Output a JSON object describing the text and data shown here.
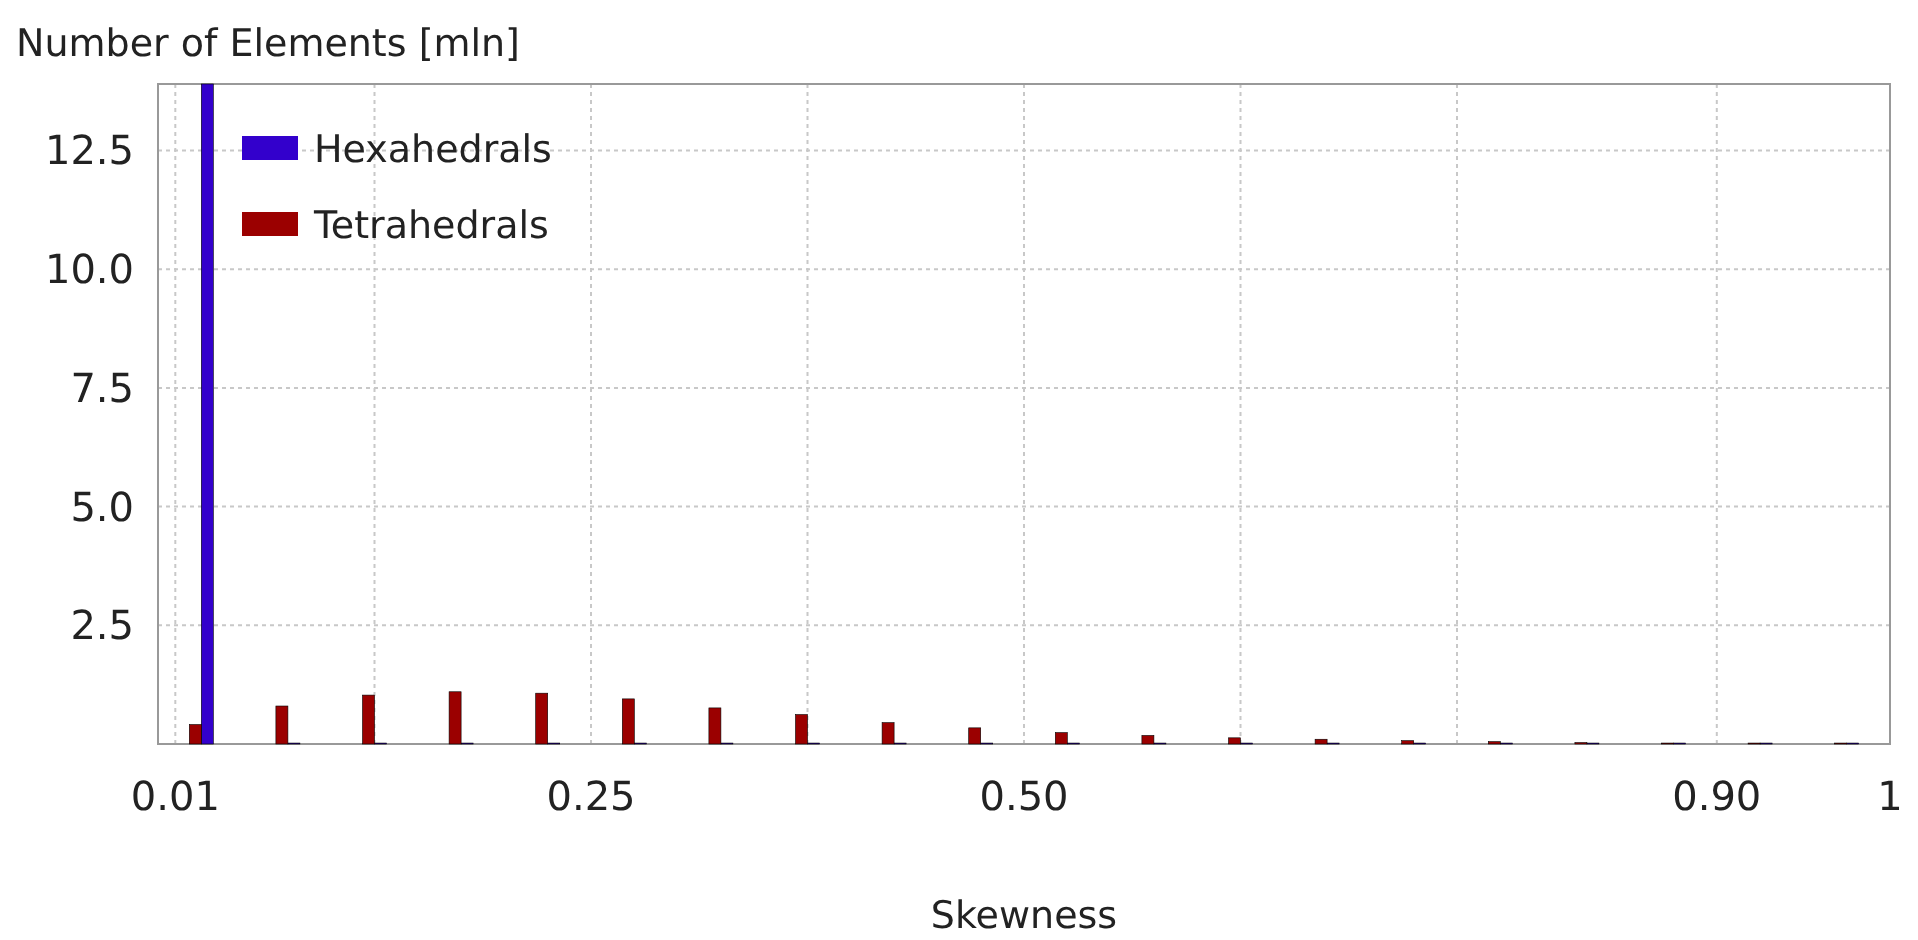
{
  "chart_data": {
    "type": "bar",
    "xlabel": "Skewness",
    "ylabel": "Number of Elements [mln]",
    "x": [
      0.025,
      0.075,
      0.125,
      0.175,
      0.225,
      0.275,
      0.325,
      0.375,
      0.425,
      0.475,
      0.525,
      0.575,
      0.625,
      0.675,
      0.725,
      0.775,
      0.825,
      0.875,
      0.925,
      0.975
    ],
    "series": [
      {
        "name": "Hexahedrals",
        "color": "#3300cc",
        "values": [
          13.9,
          0.02,
          0.02,
          0.02,
          0.02,
          0.02,
          0.02,
          0.02,
          0.02,
          0.02,
          0.02,
          0.02,
          0.02,
          0.02,
          0.02,
          0.02,
          0.02,
          0.02,
          0.02,
          0.02
        ]
      },
      {
        "name": "Tetrahedrals",
        "color": "#9b0000",
        "values": [
          0.41,
          0.8,
          1.03,
          1.1,
          1.07,
          0.95,
          0.76,
          0.62,
          0.45,
          0.34,
          0.24,
          0.18,
          0.13,
          0.1,
          0.07,
          0.05,
          0.03,
          0.02,
          0.02,
          0.02
        ]
      }
    ],
    "xlim": [
      0,
      1
    ],
    "xticks": [
      0.01,
      {
        "value": 0.125,
        "label": null
      },
      0.25,
      {
        "value": 0.375,
        "label": null
      },
      {
        "value": 0.5,
        "label": "0.50"
      },
      {
        "value": 0.625,
        "label": null
      },
      {
        "value": 0.75,
        "label": null
      },
      {
        "value": 0.9,
        "label": "0.90"
      },
      1
    ],
    "ylim": [
      0,
      13.9
    ],
    "yticks": [
      2.5,
      {
        "value": 5,
        "label": "5.0"
      },
      7.5,
      {
        "value": 10,
        "label": "10.0"
      },
      12.5
    ],
    "grid": true,
    "legend": "top left"
  }
}
